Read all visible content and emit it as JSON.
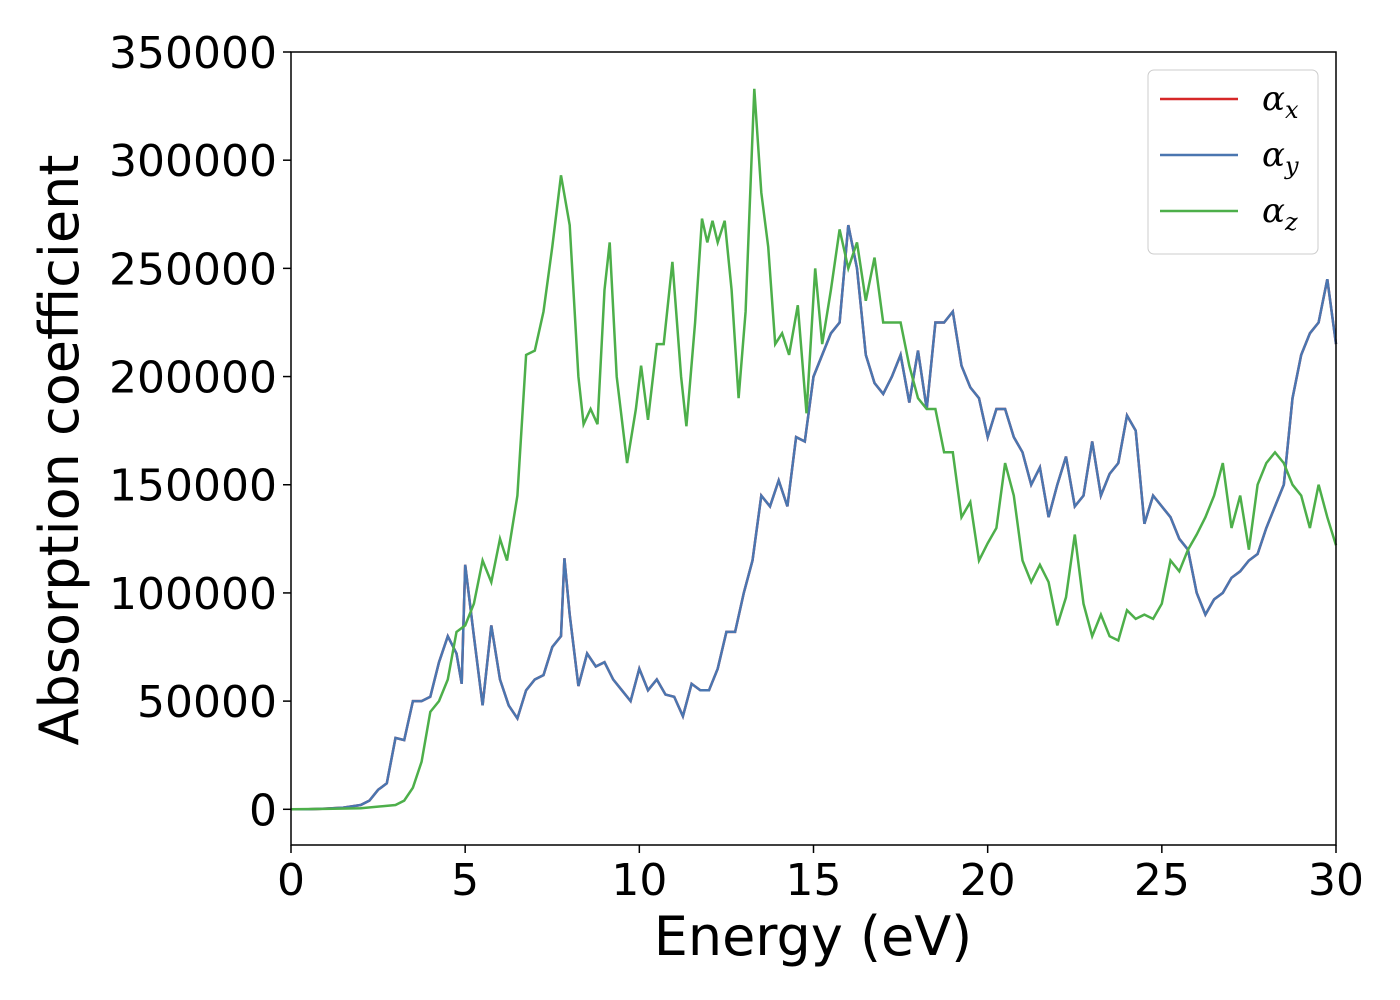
{
  "chart_data": {
    "type": "line",
    "xlabel": "Energy (eV)",
    "ylabel": "Absorption coefficient",
    "xlim": [
      0,
      30
    ],
    "xticks": [
      0,
      5,
      10,
      15,
      20,
      25,
      30
    ],
    "ylim": [
      -16500,
      350000
    ],
    "yticks": [
      0,
      50000,
      100000,
      150000,
      200000,
      250000,
      300000,
      350000
    ],
    "legend": "upper right",
    "series": [
      {
        "name": "αx",
        "color": "#d62728",
        "x": [
          0,
          0.5,
          1,
          1.5,
          2,
          2.25,
          2.5,
          2.75,
          3,
          3.25,
          3.5,
          3.75,
          4,
          4.25,
          4.5,
          4.75,
          4.9,
          5,
          5.25,
          5.5,
          5.75,
          6,
          6.25,
          6.5,
          6.75,
          7,
          7.25,
          7.5,
          7.75,
          7.85,
          8,
          8.25,
          8.5,
          8.75,
          9,
          9.25,
          9.5,
          9.75,
          10,
          10.25,
          10.5,
          10.75,
          11,
          11.25,
          11.5,
          11.75,
          12,
          12.25,
          12.5,
          12.75,
          13,
          13.25,
          13.5,
          13.75,
          14,
          14.25,
          14.5,
          14.75,
          15,
          15.25,
          15.5,
          15.75,
          16,
          16.25,
          16.5,
          16.75,
          17,
          17.25,
          17.5,
          17.75,
          18,
          18.25,
          18.5,
          18.75,
          19,
          19.25,
          19.5,
          19.75,
          20,
          20.25,
          20.5,
          20.75,
          21,
          21.25,
          21.5,
          21.75,
          22,
          22.25,
          22.5,
          22.75,
          23,
          23.25,
          23.5,
          23.75,
          24,
          24.25,
          24.5,
          24.75,
          25,
          25.25,
          25.5,
          25.75,
          26,
          26.25,
          26.5,
          26.75,
          27,
          27.25,
          27.5,
          27.75,
          28,
          28.25,
          28.5,
          28.75,
          29,
          29.25,
          29.5,
          29.75,
          30
        ],
        "values": [
          0,
          0,
          300,
          800,
          2000,
          4000,
          9000,
          12000,
          33000,
          32000,
          50000,
          50000,
          52000,
          68000,
          80000,
          72000,
          58000,
          113000,
          80000,
          48000,
          85000,
          60000,
          48000,
          42000,
          55000,
          60000,
          62000,
          75000,
          80000,
          116000,
          90000,
          57000,
          72000,
          66000,
          68000,
          60000,
          55000,
          50000,
          65000,
          55000,
          60000,
          53000,
          52000,
          43000,
          58000,
          55000,
          55000,
          65000,
          82000,
          82000,
          100000,
          115000,
          145000,
          140000,
          152000,
          140000,
          172000,
          170000,
          200000,
          210000,
          220000,
          225000,
          270000,
          250000,
          210000,
          197000,
          192000,
          200000,
          210000,
          188000,
          212000,
          185000,
          225000,
          225000,
          230000,
          205000,
          195000,
          190000,
          172000,
          185000,
          185000,
          172000,
          165000,
          150000,
          158000,
          135000,
          150000,
          163000,
          140000,
          145000,
          170000,
          145000,
          155000,
          160000,
          182000,
          175000,
          132000,
          145000,
          140000,
          135000,
          125000,
          120000,
          100000,
          90000,
          97000,
          100000,
          107000,
          110000,
          115000,
          118000,
          130000,
          140000,
          150000,
          190000,
          210000,
          220000,
          225000,
          245000,
          215000
        ]
      },
      {
        "name": "αy",
        "color": "#4a76b0",
        "x": [
          0,
          0.5,
          1,
          1.5,
          2,
          2.25,
          2.5,
          2.75,
          3,
          3.25,
          3.5,
          3.75,
          4,
          4.25,
          4.5,
          4.75,
          4.9,
          5,
          5.25,
          5.5,
          5.75,
          6,
          6.25,
          6.5,
          6.75,
          7,
          7.25,
          7.5,
          7.75,
          7.85,
          8,
          8.25,
          8.5,
          8.75,
          9,
          9.25,
          9.5,
          9.75,
          10,
          10.25,
          10.5,
          10.75,
          11,
          11.25,
          11.5,
          11.75,
          12,
          12.25,
          12.5,
          12.75,
          13,
          13.25,
          13.5,
          13.75,
          14,
          14.25,
          14.5,
          14.75,
          15,
          15.25,
          15.5,
          15.75,
          16,
          16.25,
          16.5,
          16.75,
          17,
          17.25,
          17.5,
          17.75,
          18,
          18.25,
          18.5,
          18.75,
          19,
          19.25,
          19.5,
          19.75,
          20,
          20.25,
          20.5,
          20.75,
          21,
          21.25,
          21.5,
          21.75,
          22,
          22.25,
          22.5,
          22.75,
          23,
          23.25,
          23.5,
          23.75,
          24,
          24.25,
          24.5,
          24.75,
          25,
          25.25,
          25.5,
          25.75,
          26,
          26.25,
          26.5,
          26.75,
          27,
          27.25,
          27.5,
          27.75,
          28,
          28.25,
          28.5,
          28.75,
          29,
          29.25,
          29.5,
          29.75,
          30
        ],
        "values": [
          0,
          0,
          300,
          800,
          2000,
          4000,
          9000,
          12000,
          33000,
          32000,
          50000,
          50000,
          52000,
          68000,
          80000,
          72000,
          58000,
          113000,
          80000,
          48000,
          85000,
          60000,
          48000,
          42000,
          55000,
          60000,
          62000,
          75000,
          80000,
          116000,
          90000,
          57000,
          72000,
          66000,
          68000,
          60000,
          55000,
          50000,
          65000,
          55000,
          60000,
          53000,
          52000,
          43000,
          58000,
          55000,
          55000,
          65000,
          82000,
          82000,
          100000,
          115000,
          145000,
          140000,
          152000,
          140000,
          172000,
          170000,
          200000,
          210000,
          220000,
          225000,
          270000,
          250000,
          210000,
          197000,
          192000,
          200000,
          210000,
          188000,
          212000,
          185000,
          225000,
          225000,
          230000,
          205000,
          195000,
          190000,
          172000,
          185000,
          185000,
          172000,
          165000,
          150000,
          158000,
          135000,
          150000,
          163000,
          140000,
          145000,
          170000,
          145000,
          155000,
          160000,
          182000,
          175000,
          132000,
          145000,
          140000,
          135000,
          125000,
          120000,
          100000,
          90000,
          97000,
          100000,
          107000,
          110000,
          115000,
          118000,
          130000,
          140000,
          150000,
          190000,
          210000,
          220000,
          225000,
          245000,
          215000
        ]
      },
      {
        "name": "αz",
        "color": "#4daf4a",
        "x": [
          0,
          1,
          2,
          3,
          3.25,
          3.5,
          3.75,
          4,
          4.25,
          4.5,
          4.75,
          5,
          5.25,
          5.5,
          5.75,
          6,
          6.2,
          6.5,
          6.75,
          7,
          7.25,
          7.5,
          7.75,
          8,
          8.25,
          8.4,
          8.6,
          8.8,
          9,
          9.15,
          9.35,
          9.65,
          9.9,
          10.05,
          10.25,
          10.5,
          10.7,
          10.95,
          11.2,
          11.35,
          11.6,
          11.8,
          11.95,
          12.1,
          12.25,
          12.45,
          12.65,
          12.85,
          13.05,
          13.3,
          13.5,
          13.7,
          13.9,
          14.1,
          14.3,
          14.55,
          14.8,
          15.05,
          15.25,
          15.5,
          15.75,
          16,
          16.25,
          16.5,
          16.75,
          17,
          17.25,
          17.5,
          17.75,
          18,
          18.25,
          18.5,
          18.75,
          19,
          19.25,
          19.5,
          19.75,
          20,
          20.25,
          20.5,
          20.75,
          21,
          21.25,
          21.5,
          21.75,
          22,
          22.25,
          22.5,
          22.75,
          23,
          23.25,
          23.5,
          23.75,
          24,
          24.25,
          24.5,
          24.75,
          25,
          25.25,
          25.5,
          25.75,
          26,
          26.25,
          26.5,
          26.75,
          27,
          27.25,
          27.5,
          27.75,
          28,
          28.25,
          28.5,
          28.75,
          29,
          29.25,
          29.5,
          29.75,
          30
        ],
        "values": [
          0,
          200,
          500,
          2000,
          4000,
          10000,
          22000,
          45000,
          50000,
          60000,
          82000,
          85000,
          95000,
          115000,
          105000,
          125000,
          115000,
          145000,
          210000,
          212000,
          230000,
          260000,
          293000,
          270000,
          200000,
          178000,
          185000,
          178000,
          240000,
          262000,
          200000,
          160000,
          185000,
          205000,
          180000,
          215000,
          215000,
          253000,
          200000,
          177000,
          225000,
          273000,
          262000,
          272000,
          262000,
          272000,
          240000,
          190000,
          230000,
          333000,
          285000,
          260000,
          215000,
          220000,
          210000,
          233000,
          183000,
          250000,
          215000,
          240000,
          268000,
          250000,
          262000,
          235000,
          255000,
          225000,
          225000,
          225000,
          205000,
          190000,
          185000,
          185000,
          165000,
          165000,
          135000,
          142000,
          115000,
          123000,
          130000,
          160000,
          145000,
          115000,
          105000,
          113000,
          105000,
          85000,
          98000,
          127000,
          95000,
          80000,
          90000,
          80000,
          78000,
          92000,
          88000,
          90000,
          88000,
          95000,
          115000,
          110000,
          120000,
          127000,
          135000,
          145000,
          160000,
          130000,
          145000,
          120000,
          150000,
          160000,
          165000,
          160000,
          150000,
          145000,
          130000,
          150000,
          135000,
          122000
        ]
      }
    ]
  }
}
